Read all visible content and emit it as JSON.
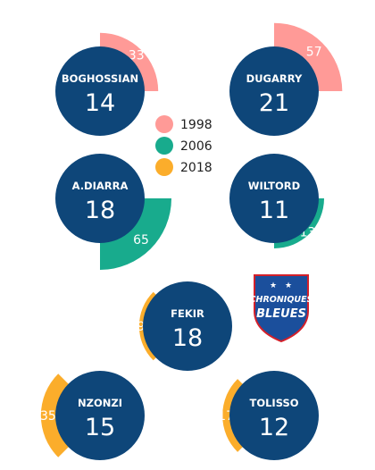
{
  "chart_data": {
    "type": "pie",
    "legend": [
      {
        "label": "1998",
        "color": "#ff9a97"
      },
      {
        "label": "2006",
        "color": "#18ab8d"
      },
      {
        "label": "2018",
        "color": "#fbad2b"
      }
    ],
    "players": [
      {
        "name": "BOGHOSSIAN",
        "total": "14",
        "year": "1998",
        "value": 33,
        "direction": "top-right"
      },
      {
        "name": "DUGARRY",
        "total": "21",
        "year": "1998",
        "value": 57,
        "direction": "top-right"
      },
      {
        "name": "A.DIARRA",
        "total": "18",
        "year": "2006",
        "value": 65,
        "direction": "bottom-right"
      },
      {
        "name": "WILTORD",
        "total": "11",
        "year": "2006",
        "value": 13,
        "direction": "bottom-right"
      },
      {
        "name": "FEKIR",
        "total": "18",
        "year": "2018",
        "value": 9,
        "direction": "left"
      },
      {
        "name": "NZONZI",
        "total": "15",
        "year": "2018",
        "value": 35,
        "direction": "left"
      },
      {
        "name": "TOLISSO",
        "total": "12",
        "year": "2018",
        "value": 17,
        "direction": "left"
      }
    ]
  },
  "logo": {
    "line1": "CHRONIQUES",
    "line2": "BLEUES"
  },
  "colors": {
    "circle": "#0e4679",
    "logo_red": "#d3202a"
  }
}
